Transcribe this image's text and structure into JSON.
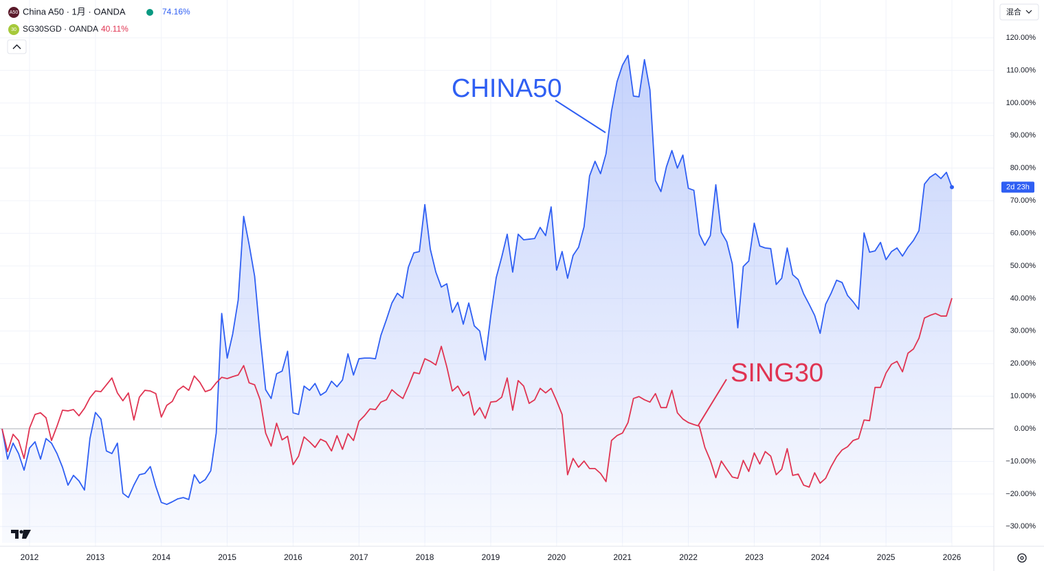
{
  "chart_data": {
    "type": "line",
    "categories": [
      null,
      null,
      null,
      null,
      null,
      "2012",
      null,
      null,
      null,
      null,
      null,
      null,
      null,
      null,
      null,
      null,
      null,
      "2013",
      null,
      null,
      null,
      null,
      null,
      null,
      null,
      null,
      null,
      null,
      null,
      "2014",
      null,
      null,
      null,
      null,
      null,
      null,
      null,
      null,
      null,
      null,
      null,
      "2015",
      null,
      null,
      null,
      null,
      null,
      null,
      null,
      null,
      null,
      null,
      null,
      "2016",
      null,
      null,
      null,
      null,
      null,
      null,
      null,
      null,
      null,
      null,
      null,
      "2017",
      null,
      null,
      null,
      null,
      null,
      null,
      null,
      null,
      null,
      null,
      null,
      "2018",
      null,
      null,
      null,
      null,
      null,
      null,
      null,
      null,
      null,
      null,
      null,
      "2019",
      null,
      null,
      null,
      null,
      null,
      null,
      null,
      null,
      null,
      null,
      null,
      "2020",
      null,
      null,
      null,
      null,
      null,
      null,
      null,
      null,
      null,
      null,
      null,
      "2021",
      null,
      null,
      null,
      null,
      null,
      null,
      null,
      null,
      null,
      null,
      null,
      "2022",
      null,
      null,
      null,
      null,
      null,
      null,
      null,
      null,
      null,
      null,
      null,
      "2023",
      null,
      null,
      null,
      null,
      null,
      null,
      null,
      null,
      null,
      null,
      null,
      "2024",
      null,
      null,
      null,
      null,
      null,
      null,
      null,
      null,
      null,
      null,
      null,
      "2025",
      null,
      null,
      null,
      null,
      null,
      null,
      null,
      null,
      null,
      null,
      null,
      "2026"
    ],
    "series": [
      {
        "name": "China A50 · 1月 · OANDA",
        "icon": "A50",
        "legend_value": "74.16%",
        "color": "#2f5ff3",
        "area": true,
        "values": [
          0,
          -9.3,
          -4.4,
          -7.6,
          -12.7,
          -5.9,
          -4,
          -9.3,
          -3,
          -4.4,
          -7.6,
          -11.8,
          -17.3,
          -14.3,
          -16,
          -18.8,
          -3,
          5,
          3,
          -6.8,
          -7.6,
          -4.4,
          -19.8,
          -21.1,
          -17.3,
          -14.1,
          -13.7,
          -11.6,
          -17.7,
          -22.6,
          -23.2,
          -22.4,
          -21.5,
          -21.1,
          -21.7,
          -14.1,
          -16.7,
          -15.6,
          -12.9,
          -1.3,
          35.4,
          21.7,
          29.1,
          39.5,
          65.2,
          56.5,
          46.8,
          28.3,
          12,
          9.3,
          16.9,
          17.7,
          23.8,
          4.9,
          4.4,
          13.1,
          11.8,
          13.9,
          10.3,
          11.4,
          14.6,
          12.9,
          15,
          23,
          16.5,
          21.5,
          21.7,
          21.7,
          21.5,
          28.7,
          33.5,
          38.6,
          41.6,
          40.1,
          49.6,
          54,
          54.4,
          68.8,
          55.1,
          48.1,
          43.5,
          44.5,
          35.7,
          38.8,
          32.1,
          38.6,
          31.6,
          30,
          21.1,
          34.6,
          46.4,
          52.7,
          59.7,
          48.1,
          59.7,
          58,
          58.2,
          58.4,
          61.8,
          59.3,
          68.1,
          48.7,
          54.4,
          46.2,
          53.2,
          55.7,
          62,
          77.6,
          82.1,
          78.3,
          84.4,
          97.5,
          106.5,
          111.6,
          114.6,
          102.1,
          101.9,
          113.3,
          104,
          76.2,
          72.8,
          80.4,
          85.4,
          80,
          84,
          73.8,
          73.2,
          59.7,
          56.3,
          59.3,
          74.9,
          60.3,
          57.4,
          50.6,
          31,
          49.8,
          51.5,
          63.1,
          56.1,
          55.5,
          55.3,
          44.3,
          46.2,
          55.5,
          47.3,
          45.8,
          41.4,
          38.2,
          34.8,
          29.3,
          38.2,
          41.6,
          45.6,
          44.9,
          40.9,
          39,
          36.7,
          60.1,
          54.2,
          54.6,
          57.2,
          51.9,
          54.4,
          55.5,
          53,
          55.7,
          57.8,
          60.8,
          75.1,
          77.2,
          78.3,
          76.8,
          78.7,
          74.16
        ]
      },
      {
        "name": "SG30SGD · OANDA",
        "icon": "30",
        "legend_value": "40.11%",
        "color": "#e03452",
        "area": false,
        "values": [
          0,
          -7,
          -1.7,
          -3.6,
          -9.1,
          0.2,
          4.4,
          4.9,
          3.4,
          -3.6,
          0.8,
          5.7,
          5.5,
          5.9,
          4,
          6.3,
          9.5,
          11.6,
          11.4,
          13.5,
          15.6,
          11,
          8.6,
          11,
          2.7,
          9.7,
          11.8,
          11.6,
          10.8,
          3.6,
          7.2,
          8.4,
          11.8,
          13.1,
          11.8,
          16.2,
          14.3,
          11.4,
          12,
          14.1,
          15.8,
          15.4,
          16,
          16.5,
          19.4,
          14.1,
          13.5,
          8.9,
          -1.3,
          -5.3,
          1.7,
          -3.4,
          -2.3,
          -11,
          -8.4,
          -2.5,
          -4,
          -5.7,
          -3.2,
          -4,
          -6.8,
          -2.1,
          -6.3,
          -1.5,
          -3.6,
          2.3,
          4,
          6.1,
          5.9,
          8.2,
          8.9,
          12,
          10.5,
          9.3,
          13.1,
          17.3,
          16.9,
          21.5,
          20.7,
          19.6,
          25.3,
          19,
          11.6,
          13.1,
          10.1,
          11.4,
          4.2,
          6.5,
          3.2,
          8.2,
          8.4,
          9.7,
          15.6,
          5.7,
          14.8,
          13.1,
          7.8,
          8.9,
          12.4,
          11,
          12.4,
          8.6,
          4.4,
          -14.1,
          -9.1,
          -11.8,
          -9.9,
          -12.2,
          -12.2,
          -13.7,
          -16.2,
          -3.6,
          -2.1,
          -1.3,
          1.9,
          9.3,
          9.9,
          8.9,
          8.2,
          10.8,
          6.5,
          6.5,
          11.8,
          4.9,
          3,
          1.9,
          1.3,
          0.8,
          -5.7,
          -9.7,
          -15,
          -9.9,
          -12.4,
          -14.8,
          -15.2,
          -9.7,
          -13.1,
          -7.4,
          -10.8,
          -7,
          -8.4,
          -14.1,
          -12.4,
          -6.1,
          -14.3,
          -13.9,
          -17.3,
          -17.9,
          -13.5,
          -16.7,
          -15.2,
          -11.6,
          -8.6,
          -6.5,
          -5.5,
          -3.6,
          -3,
          2.7,
          2.5,
          12.7,
          12.7,
          17.1,
          19.8,
          20.7,
          17.5,
          23.2,
          24.5,
          27.8,
          34,
          34.8,
          35.4,
          34.6,
          34.6,
          40.11
        ]
      }
    ],
    "ylim": [
      -35,
      131.6
    ],
    "yticks": [
      {
        "value": -30,
        "label": "−30.00%"
      },
      {
        "value": -20,
        "label": "−20.00%"
      },
      {
        "value": -10,
        "label": "−10.00%"
      },
      {
        "value": 0,
        "label": "0.00%"
      },
      {
        "value": 10,
        "label": "10.00%"
      },
      {
        "value": 20,
        "label": "20.00%"
      },
      {
        "value": 30,
        "label": "30.00%"
      },
      {
        "value": 40,
        "label": "40.00%"
      },
      {
        "value": 50,
        "label": "50.00%"
      },
      {
        "value": 60,
        "label": "60.00%"
      },
      {
        "value": 70,
        "label": "70.00%"
      },
      {
        "value": 80,
        "label": "80.00%"
      },
      {
        "value": 90,
        "label": "90.00%"
      },
      {
        "value": 100,
        "label": "100.00%"
      },
      {
        "value": 110,
        "label": "110.00%"
      },
      {
        "value": 120,
        "label": "120.00%"
      }
    ],
    "grid": true,
    "annotations": [
      {
        "text": "CHINA50",
        "color": "#2f5ff3"
      },
      {
        "text": "SING30",
        "color": "#e03452"
      }
    ],
    "scale_mode": "混合",
    "countdown": "2d 23h"
  }
}
